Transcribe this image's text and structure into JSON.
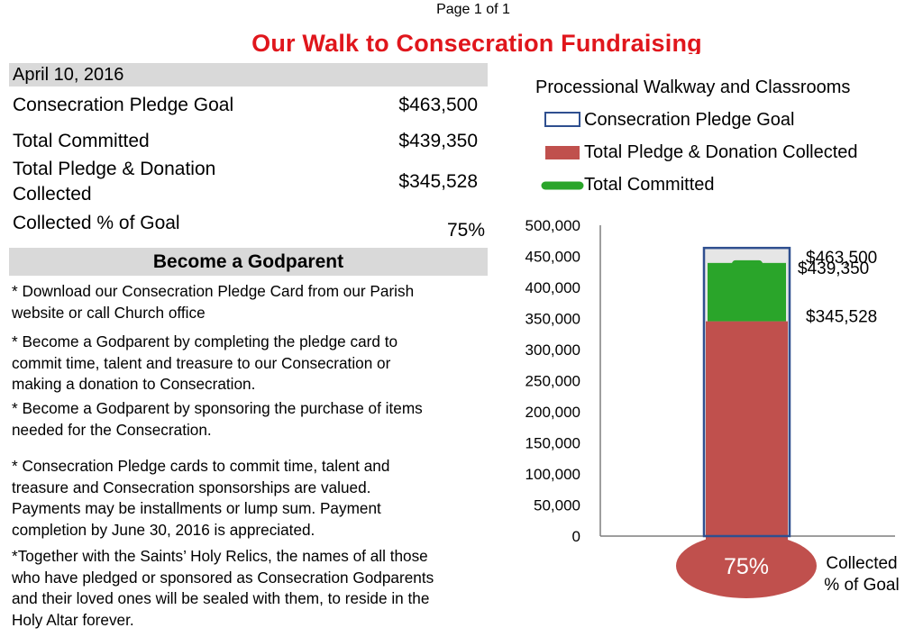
{
  "page_label": "Page 1 of 1",
  "title": "Our Walk to Consecration Fundraising",
  "date": "April 10, 2016",
  "summary": {
    "rows": [
      {
        "label": "Consecration Pledge Goal",
        "value": "$463,500"
      },
      {
        "label": "Total Committed",
        "value": "$439,350"
      },
      {
        "label_line1": "Total Pledge & Donation",
        "label_line2": "Collected",
        "value": "$345,528"
      },
      {
        "label": "Collected % of Goal",
        "value": "75%"
      }
    ]
  },
  "godparent": {
    "title": "Become a Godparent",
    "bullets": [
      {
        "lines": [
          "* Download our Consecration Pledge Card from our Parish",
          "website or call Church office"
        ]
      },
      {
        "lines": [
          "* Become a Godparent by completing the pledge card to",
          "commit time, talent and treasure to our Consecration or",
          "making a donation to Consecration."
        ]
      },
      {
        "lines": [
          "* Become a Godparent by sponsoring the purchase of items",
          "needed for the Consecration."
        ]
      },
      {
        "lines": [
          "* Consecration Pledge cards to commit time, talent and",
          "treasure and Consecration sponsorships are valued.",
          "Payments may be installments or lump sum. Payment",
          "completion by June 30, 2016 is appreciated."
        ]
      },
      {
        "lines": [
          "*Together with the Saints’ Holy Relics, the names of all those",
          "who have pledged or sponsored as Consecration Godparents",
          "and their loved ones will be sealed with them, to reside in the",
          "Holy Altar forever."
        ]
      }
    ]
  },
  "chart_data": {
    "type": "bar",
    "title": "Processional Walkway and Classrooms",
    "legend": [
      "Consecration Pledge Goal",
      "Total Pledge & Donation Collected",
      "Total Committed"
    ],
    "legend_position": "top",
    "ylim": [
      0,
      500000
    ],
    "y_ticks": [
      "500,000",
      "450,000",
      "400,000",
      "350,000",
      "300,000",
      "250,000",
      "200,000",
      "150,000",
      "100,000",
      "50,000",
      "0"
    ],
    "series": [
      {
        "name": "Consecration Pledge Goal",
        "value": 463500,
        "label": "$463,500"
      },
      {
        "name": "Total Committed",
        "value": 439350,
        "label": "$439,350"
      },
      {
        "name": "Total Pledge & Donation Collected",
        "value": 345528,
        "label": "$345,528"
      }
    ],
    "bulb_label": "75%",
    "collected_label_line1": "Collected",
    "collected_label_line2": "% of Goal",
    "colors": {
      "goal_outline": "#2f4f8f",
      "collected": "#c0504d",
      "committed": "#2aa52a",
      "goal_fill": "#e6e6e6"
    }
  }
}
